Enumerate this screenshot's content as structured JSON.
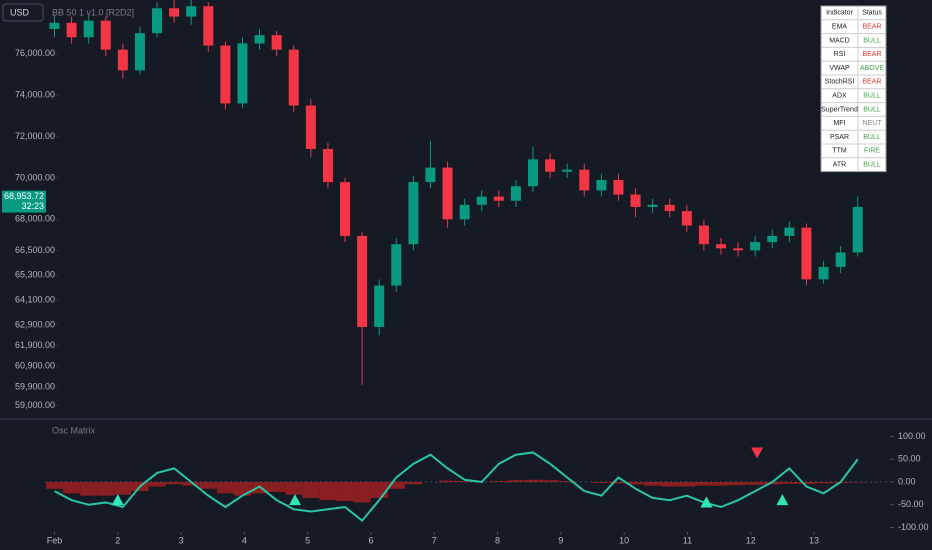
{
  "chart_data": [
    {
      "type": "candlestick",
      "label": "BB 50 1 v1.0 [R2D2]",
      "up_color": "#089981",
      "down_color": "#f23645",
      "x": [
        1.0,
        1.27,
        1.54,
        1.81,
        2.08,
        2.35,
        2.62,
        2.89,
        3.16,
        3.43,
        3.7,
        3.97,
        4.24,
        4.51,
        4.78,
        5.05,
        5.32,
        5.59,
        5.86,
        6.13,
        6.4,
        6.67,
        6.94,
        7.21,
        7.48,
        7.75,
        8.02,
        8.29,
        8.56,
        8.83,
        9.1,
        9.37,
        9.64,
        9.91,
        10.18,
        10.45,
        10.72,
        10.99,
        11.26,
        11.53,
        11.8,
        12.07,
        12.34,
        12.61,
        12.88,
        13.15,
        13.42,
        13.69
      ],
      "open": [
        77200,
        77500,
        76800,
        77600,
        76200,
        75200,
        77000,
        78200,
        77800,
        78300,
        76400,
        73600,
        76500,
        76900,
        76200,
        73500,
        71400,
        69800,
        67200,
        62800,
        64800,
        66800,
        69800,
        70500,
        68000,
        68700,
        69100,
        68900,
        69600,
        70900,
        70300,
        70400,
        69400,
        69900,
        69200,
        68600,
        68700,
        68400,
        67700,
        66800,
        66600,
        66500,
        66900,
        67200,
        67600,
        65100,
        65700,
        66400
      ],
      "high": [
        77900,
        77800,
        77900,
        77800,
        76500,
        77300,
        78500,
        78600,
        78600,
        78500,
        76600,
        76800,
        77200,
        77100,
        76400,
        73800,
        71700,
        70000,
        67400,
        65100,
        67100,
        70100,
        71800,
        70800,
        69000,
        69400,
        69400,
        69900,
        71500,
        71200,
        70700,
        70700,
        70200,
        70200,
        69500,
        69000,
        69000,
        68700,
        68000,
        67100,
        66900,
        67200,
        67500,
        67900,
        67800,
        66000,
        66700,
        69100
      ],
      "low": [
        76800,
        76500,
        76500,
        75900,
        74800,
        75000,
        76800,
        77500,
        77400,
        76100,
        73300,
        73400,
        76200,
        75900,
        73200,
        71000,
        69500,
        66900,
        60000,
        62400,
        64500,
        66500,
        69500,
        67600,
        67700,
        68400,
        68600,
        68600,
        69300,
        70000,
        70000,
        69100,
        69100,
        68900,
        68100,
        68300,
        68100,
        67400,
        66500,
        66300,
        66200,
        66200,
        66600,
        66900,
        64800,
        64900,
        65400,
        66200
      ],
      "close": [
        77500,
        76800,
        77600,
        76200,
        75200,
        77000,
        78200,
        77800,
        78300,
        76400,
        73600,
        76500,
        76900,
        76200,
        73500,
        71400,
        69800,
        67200,
        62800,
        64800,
        66800,
        69800,
        70500,
        68000,
        68700,
        69100,
        68900,
        69600,
        70900,
        70300,
        70400,
        69400,
        69900,
        69200,
        68600,
        68700,
        68400,
        67700,
        66800,
        66600,
        66500,
        66900,
        67200,
        67600,
        65100,
        65700,
        66400,
        68600
      ],
      "ylim": [
        58400,
        78600
      ],
      "yticks": [
        {
          "value": 76000,
          "label": "76,000.00"
        },
        {
          "value": 74000,
          "label": "74,000.00"
        },
        {
          "value": 72000,
          "label": "72,000.00"
        },
        {
          "value": 70000,
          "label": "70,000.00"
        },
        {
          "value": 68000,
          "label": "68,000.00"
        },
        {
          "value": 66500,
          "label": "66,500.00"
        },
        {
          "value": 65300,
          "label": "65,300.00"
        },
        {
          "value": 64100,
          "label": "64,100.00"
        },
        {
          "value": 62900,
          "label": "62,900.00"
        },
        {
          "value": 61900,
          "label": "61,900.00"
        },
        {
          "value": 60900,
          "label": "60,900.00"
        },
        {
          "value": 59900,
          "label": "59,900.00"
        },
        {
          "value": 59000,
          "label": "59,000.00"
        }
      ],
      "xlim": [
        0.85,
        14.2
      ],
      "xticks": [
        {
          "value": 1,
          "label": "Feb"
        },
        2,
        3,
        4,
        5,
        6,
        7,
        8,
        9,
        10,
        11,
        12,
        13
      ],
      "last_price": {
        "value": 68953.72,
        "label": "68,953.72"
      },
      "countdown": "32:23"
    },
    {
      "type": "oscillator",
      "title": "Osc Matrix",
      "line_color": "#26c6a6",
      "hist_color": "#b22222",
      "x": [
        1.0,
        1.27,
        1.54,
        1.81,
        2.08,
        2.35,
        2.62,
        2.89,
        3.16,
        3.43,
        3.7,
        3.97,
        4.24,
        4.51,
        4.78,
        5.05,
        5.32,
        5.59,
        5.86,
        6.13,
        6.4,
        6.67,
        6.94,
        7.21,
        7.48,
        7.75,
        8.02,
        8.29,
        8.56,
        8.83,
        9.1,
        9.37,
        9.64,
        9.91,
        10.18,
        10.45,
        10.72,
        10.99,
        11.26,
        11.53,
        11.8,
        12.07,
        12.34,
        12.61,
        12.88,
        13.15,
        13.42,
        13.69
      ],
      "values": [
        -20,
        -40,
        -50,
        -45,
        -55,
        -10,
        20,
        30,
        0,
        -30,
        -55,
        -30,
        -10,
        -40,
        -60,
        -65,
        -60,
        -55,
        -85,
        -40,
        10,
        40,
        60,
        30,
        5,
        0,
        40,
        60,
        65,
        40,
        10,
        -20,
        -30,
        10,
        -15,
        -35,
        -40,
        -30,
        -45,
        -55,
        -40,
        -20,
        0,
        30,
        -10,
        -25,
        0,
        50
      ],
      "histogram": [
        -15,
        -25,
        -30,
        -30,
        -28,
        -20,
        -10,
        -5,
        -8,
        -15,
        -25,
        -30,
        -25,
        -22,
        -28,
        -35,
        -40,
        -42,
        -45,
        -35,
        -15,
        -5,
        0,
        3,
        2,
        0,
        2,
        4,
        5,
        4,
        2,
        0,
        -2,
        -3,
        -5,
        -8,
        -10,
        -10,
        -8,
        -8,
        -7,
        -6,
        -5,
        -4,
        -4,
        -3,
        -2,
        -1
      ],
      "buy_signals": {
        "x": [
          2.0,
          4.8,
          11.3,
          12.5
        ],
        "values": [
          -40,
          -40,
          -45,
          -40
        ],
        "color": "#2ee8b6"
      },
      "sell_signals": {
        "x": [
          12.1
        ],
        "values": [
          65
        ],
        "color": "#f23645"
      },
      "ylim": [
        -110,
        110
      ],
      "yticks": [
        {
          "value": 100,
          "label": "100.00"
        },
        {
          "value": 50,
          "label": "50.00"
        },
        {
          "value": 0,
          "label": "0.00"
        },
        {
          "value": -50,
          "label": "-50.00"
        },
        {
          "value": -100,
          "label": "-100.00"
        }
      ]
    }
  ],
  "toolbar": {
    "currency": "USD"
  },
  "table": {
    "header": [
      "Indicator",
      "Status"
    ],
    "rows": [
      {
        "indicator": "EMA",
        "status": "BEAR",
        "color": "#e53935"
      },
      {
        "indicator": "MACD",
        "status": "BULL",
        "color": "#43a047"
      },
      {
        "indicator": "RSI",
        "status": "BEAR",
        "color": "#e53935"
      },
      {
        "indicator": "VWAP",
        "status": "ABOVE",
        "color": "#43a047"
      },
      {
        "indicator": "StochRSI",
        "status": "BEAR",
        "color": "#e53935"
      },
      {
        "indicator": "ADX",
        "status": "BULL",
        "color": "#43a047"
      },
      {
        "indicator": "SuperTrend",
        "status": "BULL",
        "color": "#43a047"
      },
      {
        "indicator": "MFI",
        "status": "NEUT",
        "color": "#888888"
      },
      {
        "indicator": "PSAR",
        "status": "BULL",
        "color": "#43a047"
      },
      {
        "indicator": "TTM",
        "status": "FIRE",
        "color": "#43a047"
      },
      {
        "indicator": "ATR",
        "status": "BULL",
        "color": "#43a047"
      }
    ]
  }
}
